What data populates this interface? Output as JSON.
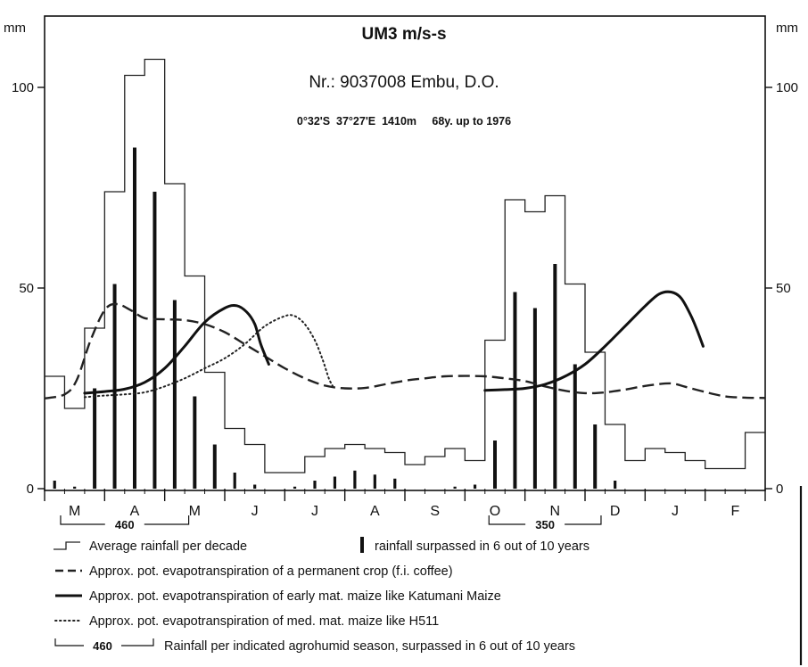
{
  "chart_data": {
    "type": "bar",
    "title": "UM3 m/s-s",
    "subtitle": "Nr.: 9037008 Embu, D.O.",
    "station_info": "0°32'S  37°27'E  1410m     68y. up to 1976",
    "ylabel_left": "mm",
    "ylabel_right": "mm",
    "ylim": [
      0,
      110
    ],
    "yticks": [
      0,
      50,
      100
    ],
    "months": [
      "M",
      "A",
      "M",
      "J",
      "J",
      "A",
      "S",
      "O",
      "N",
      "D",
      "J",
      "F"
    ],
    "decades_per_month": 3,
    "series": [
      {
        "name": "Average rainfall per decade",
        "style": "step",
        "values": [
          28,
          20,
          40,
          74,
          103,
          107,
          76,
          53,
          29,
          15,
          11,
          4,
          4,
          8,
          10,
          11,
          10,
          9,
          6,
          8,
          10,
          7,
          37,
          72,
          69,
          73,
          51,
          34,
          16,
          7,
          10,
          9,
          7,
          5,
          5,
          14
        ]
      },
      {
        "name": "rainfall surpassed in 6 out of 10 years",
        "style": "bars",
        "values": [
          2,
          0.5,
          25,
          51,
          85,
          74,
          47,
          23,
          11,
          4,
          1,
          0,
          0.5,
          2,
          3,
          4.5,
          3.5,
          2.5,
          0,
          0,
          0.5,
          1,
          12,
          49,
          45,
          56,
          31,
          16,
          2,
          0,
          0,
          0,
          0,
          0,
          0,
          0
        ]
      },
      {
        "name": "Approx. pot. evapotranspiration of a permanent crop (f.i. coffee)",
        "style": "dashed",
        "points": [
          [
            0,
            22.5
          ],
          [
            1,
            23.5
          ],
          [
            1.6,
            27
          ],
          [
            2.3,
            37
          ],
          [
            3,
            44.5
          ],
          [
            3.6,
            46
          ],
          [
            4.3,
            44.5
          ],
          [
            5,
            42.5
          ],
          [
            6,
            42.2
          ],
          [
            7,
            42
          ],
          [
            8,
            41
          ],
          [
            9,
            39
          ],
          [
            10,
            36
          ],
          [
            11,
            33
          ],
          [
            12,
            30
          ],
          [
            13,
            27.5
          ],
          [
            14,
            25.7
          ],
          [
            15,
            25
          ],
          [
            16,
            25.1
          ],
          [
            17,
            26
          ],
          [
            18,
            26.9
          ],
          [
            19,
            27.5
          ],
          [
            20,
            28
          ],
          [
            21,
            28.1
          ],
          [
            22,
            28
          ],
          [
            23,
            27.5
          ],
          [
            24,
            26.8
          ],
          [
            25,
            25.5
          ],
          [
            26,
            24.4
          ],
          [
            27,
            23.8
          ],
          [
            28,
            24
          ],
          [
            29,
            24.7
          ],
          [
            30,
            25.6
          ],
          [
            31,
            26.2
          ],
          [
            31.5,
            26.1
          ],
          [
            32,
            25.4
          ],
          [
            33,
            24.1
          ],
          [
            34,
            23
          ],
          [
            35,
            22.7
          ],
          [
            36,
            22.6
          ]
        ]
      },
      {
        "name": "Approx. pot. evapotranspiration of early mat. maize like Katumani Maize",
        "style": "solid",
        "segments": [
          [
            [
              2,
              23.8
            ],
            [
              3,
              24.2
            ],
            [
              4,
              24.8
            ],
            [
              5,
              26.5
            ],
            [
              6,
              30
            ],
            [
              7,
              35.5
            ],
            [
              8,
              41.5
            ],
            [
              9,
              45
            ],
            [
              9.6,
              45.6
            ],
            [
              10.1,
              44
            ],
            [
              10.5,
              41
            ],
            [
              10.8,
              36
            ],
            [
              11.2,
              31
            ]
          ],
          [
            [
              22,
              24.5
            ],
            [
              23,
              24.7
            ],
            [
              24,
              25
            ],
            [
              25,
              26
            ],
            [
              26,
              28
            ],
            [
              27,
              31
            ],
            [
              28,
              35.5
            ],
            [
              29,
              40.5
            ],
            [
              30,
              45.5
            ],
            [
              30.7,
              48.5
            ],
            [
              31.3,
              49
            ],
            [
              31.8,
              47.5
            ],
            [
              32.3,
              43
            ],
            [
              32.6,
              39.5
            ],
            [
              32.9,
              35.5
            ]
          ]
        ]
      },
      {
        "name": "Approx. pot. evapotranspiration of med. mat. maize like H511",
        "style": "dotted",
        "points": [
          [
            2,
            22.8
          ],
          [
            3,
            23.2
          ],
          [
            4,
            23.5
          ],
          [
            5,
            24
          ],
          [
            6,
            25.5
          ],
          [
            7,
            27.5
          ],
          [
            8,
            30
          ],
          [
            9,
            32.5
          ],
          [
            10,
            36
          ],
          [
            11,
            40.5
          ],
          [
            12,
            43
          ],
          [
            12.5,
            43
          ],
          [
            13,
            41
          ],
          [
            13.5,
            37
          ],
          [
            13.9,
            32
          ],
          [
            14.2,
            27.5
          ],
          [
            14.4,
            25.5
          ]
        ]
      }
    ],
    "seasons": [
      {
        "name": "Rainfall per indicated agrohumid season, surpassed in 6 out of 10 years",
        "value": "460",
        "range_months": [
          0.8,
          7.2
        ]
      },
      {
        "name": "Rainfall per indicated agrohumid season, surpassed in 6 out of 10 years",
        "value": "350",
        "range_months": [
          22.2,
          27.8
        ]
      }
    ],
    "legend": [
      {
        "kind": "step",
        "text": "Average rainfall per decade"
      },
      {
        "kind": "bar",
        "text": "rainfall surpassed in 6 out of 10 years"
      },
      {
        "kind": "dashed",
        "text": "Approx. pot. evapotranspiration of a permanent crop (f.i. coffee)"
      },
      {
        "kind": "solid",
        "text": "Approx. pot. evapotranspiration of early mat. maize like Katumani Maize"
      },
      {
        "kind": "dotted",
        "text": "Approx. pot. evapotranspiration of med. mat. maize like H511"
      },
      {
        "kind": "season",
        "value": "460",
        "text": "Rainfall per indicated agrohumid season, surpassed in 6 out of 10 years"
      }
    ]
  }
}
